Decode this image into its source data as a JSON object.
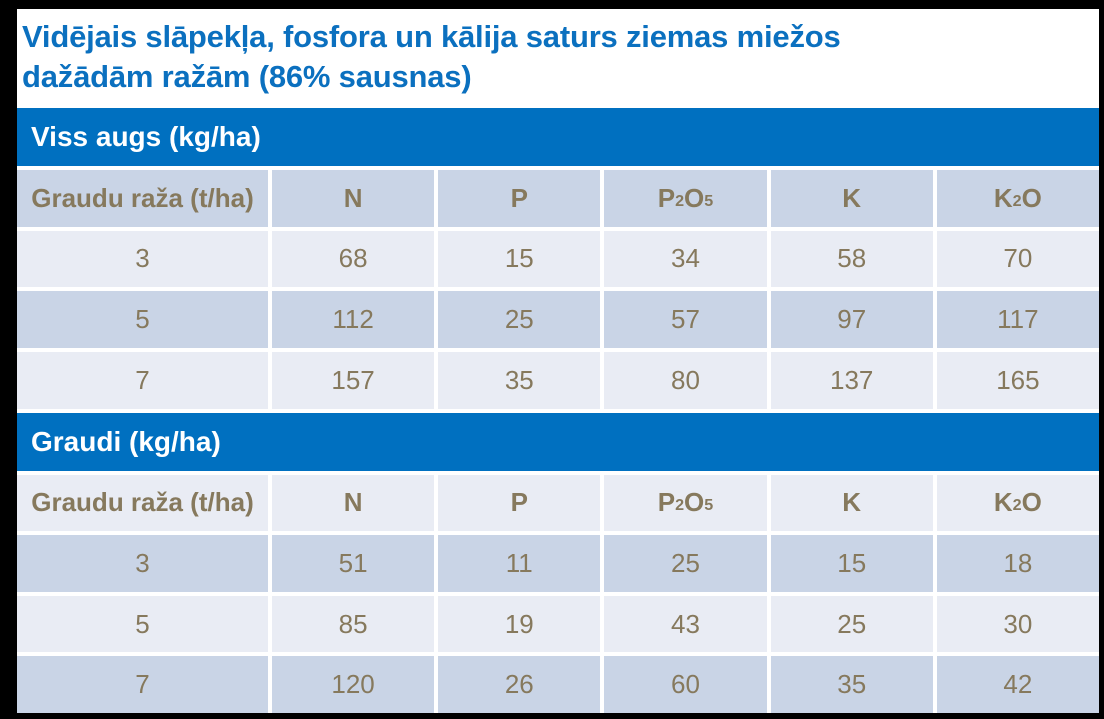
{
  "title": {
    "line1": "Vidējais slāpekļa, fosfora un kālija saturs ziemas miežos",
    "line2": "dažādām ražām (86% sausnas)"
  },
  "colors": {
    "title_blue": "#0b70bf",
    "accent_blue": "#0070c0",
    "row_light": "#e9ecf4",
    "row_dark": "#c9d4e6",
    "cell_text": "#86795d",
    "frame_black": "#000000",
    "page_white": "#ffffff"
  },
  "columns": [
    {
      "label": "Graudu raža (t/ha)"
    },
    {
      "label": "N"
    },
    {
      "label": "P"
    },
    {
      "segments": [
        {
          "text": "P"
        },
        {
          "text": "2",
          "sub": true
        },
        {
          "text": "O"
        },
        {
          "text": "5",
          "sub": true
        }
      ]
    },
    {
      "label": "K"
    },
    {
      "segments": [
        {
          "text": "K"
        },
        {
          "text": "2",
          "sub": true
        },
        {
          "text": "O"
        }
      ]
    }
  ],
  "sections": [
    {
      "heading": "Viss augs (kg/ha)",
      "header_shade": "dark",
      "rows": [
        {
          "shade": "light",
          "cells": [
            "3",
            "68",
            "15",
            "34",
            "58",
            "70"
          ]
        },
        {
          "shade": "dark",
          "cells": [
            "5",
            "112",
            "25",
            "57",
            "97",
            "117"
          ]
        },
        {
          "shade": "light",
          "cells": [
            "7",
            "157",
            "35",
            "80",
            "137",
            "165"
          ]
        }
      ]
    },
    {
      "heading": "Graudi (kg/ha)",
      "header_shade": "light",
      "rows": [
        {
          "shade": "dark",
          "cells": [
            "3",
            "51",
            "11",
            "25",
            "15",
            "18"
          ]
        },
        {
          "shade": "light",
          "cells": [
            "5",
            "85",
            "19",
            "43",
            "25",
            "30"
          ]
        },
        {
          "shade": "dark",
          "cells": [
            "7",
            "120",
            "26",
            "60",
            "35",
            "42"
          ]
        }
      ]
    }
  ]
}
